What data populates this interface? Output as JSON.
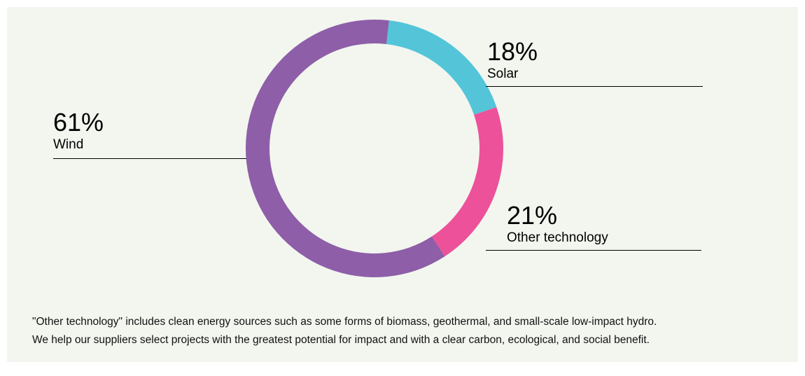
{
  "chart_data": {
    "type": "pie",
    "variant": "donut",
    "slices": [
      {
        "label": "Solar",
        "value": 18,
        "value_text": "18%",
        "color": "#54c5d9"
      },
      {
        "label": "Other technology",
        "value": 21,
        "value_text": "21%",
        "color": "#ec519a"
      },
      {
        "label": "Wind",
        "value": 61,
        "value_text": "61%",
        "color": "#8e5ea8"
      }
    ],
    "start_angle_deg": 6.5,
    "direction": "clockwise"
  },
  "footnote": {
    "line1": "\"Other technology\" includes clean energy sources such as some forms of biomass, geothermal, and small-scale low-impact hydro.",
    "line2": "We help our suppliers select projects with the greatest potential for impact and with a clear carbon, ecological, and social benefit."
  },
  "colors": {
    "background": "#f2f6ef",
    "text": "#000000"
  }
}
